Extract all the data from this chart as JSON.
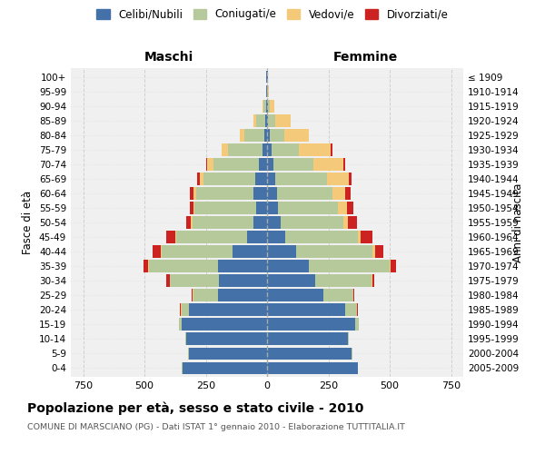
{
  "age_groups": [
    "0-4",
    "5-9",
    "10-14",
    "15-19",
    "20-24",
    "25-29",
    "30-34",
    "35-39",
    "40-44",
    "45-49",
    "50-54",
    "55-59",
    "60-64",
    "65-69",
    "70-74",
    "75-79",
    "80-84",
    "85-89",
    "90-94",
    "95-99",
    "100+"
  ],
  "birth_years": [
    "2005-2009",
    "2000-2004",
    "1995-1999",
    "1990-1994",
    "1985-1989",
    "1980-1984",
    "1975-1979",
    "1970-1974",
    "1965-1969",
    "1960-1964",
    "1955-1959",
    "1950-1954",
    "1945-1949",
    "1940-1944",
    "1935-1939",
    "1930-1934",
    "1925-1929",
    "1920-1924",
    "1915-1919",
    "1910-1914",
    "≤ 1909"
  ],
  "maschi": {
    "celibi": [
      345,
      320,
      330,
      350,
      320,
      200,
      195,
      200,
      140,
      80,
      55,
      45,
      55,
      50,
      35,
      20,
      12,
      6,
      4,
      2,
      2
    ],
    "coniugati": [
      2,
      2,
      5,
      10,
      30,
      100,
      200,
      280,
      290,
      290,
      250,
      250,
      235,
      210,
      185,
      140,
      80,
      40,
      10,
      3,
      1
    ],
    "vedovi": [
      0,
      0,
      0,
      0,
      2,
      2,
      2,
      5,
      5,
      5,
      5,
      5,
      10,
      15,
      25,
      25,
      20,
      10,
      5,
      0,
      0
    ],
    "divorziati": [
      0,
      0,
      0,
      0,
      2,
      5,
      15,
      20,
      30,
      35,
      20,
      15,
      15,
      10,
      5,
      0,
      0,
      0,
      0,
      0,
      0
    ]
  },
  "femmine": {
    "nubili": [
      370,
      345,
      330,
      360,
      320,
      230,
      195,
      170,
      120,
      75,
      55,
      45,
      40,
      35,
      25,
      20,
      10,
      5,
      3,
      1,
      2
    ],
    "coniugate": [
      2,
      2,
      5,
      15,
      45,
      120,
      230,
      330,
      310,
      295,
      255,
      245,
      225,
      210,
      165,
      110,
      60,
      30,
      8,
      2,
      0
    ],
    "vedove": [
      0,
      0,
      0,
      0,
      2,
      2,
      3,
      5,
      10,
      10,
      20,
      35,
      55,
      90,
      120,
      130,
      100,
      60,
      20,
      5,
      0
    ],
    "divorziate": [
      0,
      0,
      0,
      0,
      2,
      5,
      10,
      20,
      35,
      50,
      35,
      25,
      20,
      10,
      10,
      5,
      0,
      0,
      0,
      0,
      0
    ]
  },
  "colors": {
    "celibi": "#4472a8",
    "coniugati": "#b5c99a",
    "vedovi": "#f5c97a",
    "divorziati": "#cc2222"
  },
  "title": "Popolazione per età, sesso e stato civile - 2010",
  "subtitle": "COMUNE DI MARSCIANO (PG) - Dati ISTAT 1° gennaio 2010 - Elaborazione TUTTITALIA.IT",
  "xlabel_left": "Maschi",
  "xlabel_right": "Femmine",
  "ylabel_left": "Fasce di età",
  "ylabel_right": "Anni di nascita",
  "xlim": 800,
  "legend_labels": [
    "Celibi/Nubili",
    "Coniugati/e",
    "Vedovi/e",
    "Divorziati/e"
  ]
}
